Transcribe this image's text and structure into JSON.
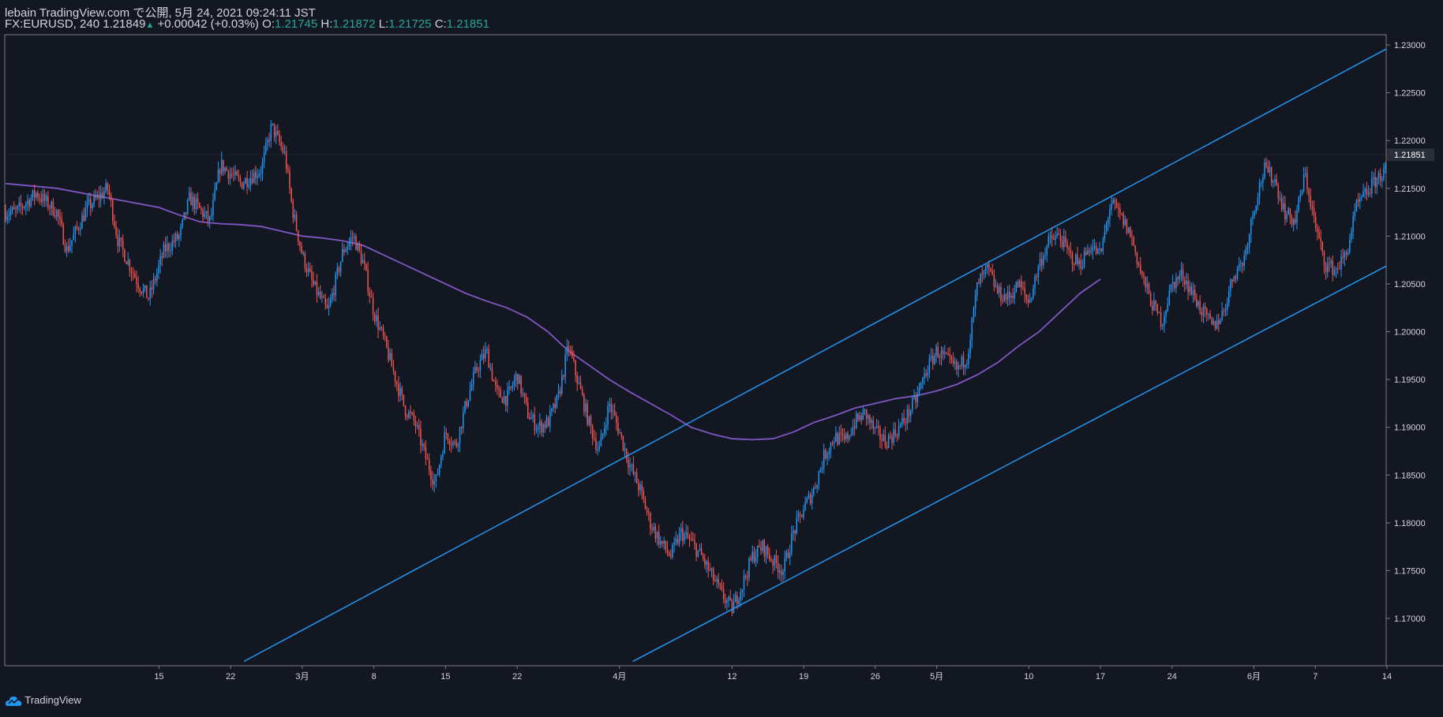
{
  "header": {
    "publish_line": "lebain TradingView.com で公開, 5月 24, 2021 09:24:11 JST",
    "symbol_line_prefix": "FX:EURUSD, 240 1.21849",
    "change_text": "+0.00042 (+0.03%)",
    "o_label": "O:",
    "o_value": "1.21745",
    "h_label": "H:",
    "h_value": "1.21872",
    "l_label": "L:",
    "l_value": "1.21725",
    "c_label": "C:",
    "c_value": "1.21851"
  },
  "footer": {
    "brand": "TradingView"
  },
  "colors": {
    "background": "#131722",
    "up_candle": "#2196f3",
    "down_candle": "#ef5350",
    "trendline": "#2196f3",
    "moving_average": "#7e57c2",
    "text": "#d1d4dc",
    "teal": "#26a69a"
  },
  "chart_data": {
    "type": "candlestick",
    "title": "FX:EURUSD, 240",
    "ylim": [
      1.165,
      1.231
    ],
    "y_ticks": [
      "1.23000",
      "1.22500",
      "1.22000",
      "1.21500",
      "1.21000",
      "1.20500",
      "1.20000",
      "1.19500",
      "1.19000",
      "1.18500",
      "1.18000",
      "1.17500",
      "1.17000"
    ],
    "last_price_label": "1.21851",
    "x_ticks": [
      {
        "label": "15",
        "day": 15
      },
      {
        "label": "22",
        "day": 22
      },
      {
        "label": "3月",
        "day": 29
      },
      {
        "label": "8",
        "day": 36
      },
      {
        "label": "15",
        "day": 43
      },
      {
        "label": "22",
        "day": 50
      },
      {
        "label": "4月",
        "day": 60
      },
      {
        "label": "12",
        "day": 71
      },
      {
        "label": "19",
        "day": 78
      },
      {
        "label": "26",
        "day": 85
      },
      {
        "label": "5月",
        "day": 91
      },
      {
        "label": "10",
        "day": 100
      },
      {
        "label": "17",
        "day": 107
      },
      {
        "label": "24",
        "day": 114
      },
      {
        "label": "6月",
        "day": 122
      },
      {
        "label": "7",
        "day": 128
      },
      {
        "label": "14",
        "day": 135
      }
    ],
    "price_path": [
      [
        1,
        1.2125
      ],
      [
        3,
        1.2145
      ],
      [
        5,
        1.2125
      ],
      [
        6,
        1.2085
      ],
      [
        8,
        1.213
      ],
      [
        10,
        1.215
      ],
      [
        11,
        1.2095
      ],
      [
        13,
        1.205
      ],
      [
        14,
        1.2035
      ],
      [
        15.5,
        1.2085
      ],
      [
        17,
        1.21
      ],
      [
        18,
        1.214
      ],
      [
        20,
        1.2115
      ],
      [
        21,
        1.2175
      ],
      [
        23,
        1.2155
      ],
      [
        25,
        1.217
      ],
      [
        26,
        1.2215
      ],
      [
        27.3,
        1.2185
      ],
      [
        28,
        1.213
      ],
      [
        29,
        1.208
      ],
      [
        30,
        1.205
      ],
      [
        31.5,
        1.202
      ],
      [
        33,
        1.2085
      ],
      [
        34,
        1.21
      ],
      [
        35,
        1.207
      ],
      [
        36,
        1.202
      ],
      [
        37,
        1.199
      ],
      [
        38,
        1.1955
      ],
      [
        39,
        1.192
      ],
      [
        40,
        1.1905
      ],
      [
        41,
        1.187
      ],
      [
        42,
        1.184
      ],
      [
        43,
        1.1895
      ],
      [
        44,
        1.188
      ],
      [
        45,
        1.1925
      ],
      [
        46,
        1.196
      ],
      [
        47,
        1.198
      ],
      [
        48,
        1.1935
      ],
      [
        49,
        1.193
      ],
      [
        50,
        1.1955
      ],
      [
        51,
        1.1915
      ],
      [
        52,
        1.19
      ],
      [
        53,
        1.1905
      ],
      [
        54,
        1.193
      ],
      [
        55,
        1.1985
      ],
      [
        56,
        1.1945
      ],
      [
        57,
        1.1905
      ],
      [
        58,
        1.1875
      ],
      [
        59,
        1.1925
      ],
      [
        60,
        1.1895
      ],
      [
        61,
        1.186
      ],
      [
        62,
        1.1835
      ],
      [
        63,
        1.18
      ],
      [
        64,
        1.178
      ],
      [
        65,
        1.1765
      ],
      [
        66,
        1.179
      ],
      [
        67,
        1.178
      ],
      [
        68,
        1.1765
      ],
      [
        69,
        1.1745
      ],
      [
        70,
        1.1725
      ],
      [
        71,
        1.171
      ],
      [
        72,
        1.1735
      ],
      [
        73,
        1.1765
      ],
      [
        74,
        1.1775
      ],
      [
        75,
        1.176
      ],
      [
        76,
        1.175
      ],
      [
        77,
        1.179
      ],
      [
        78,
        1.1815
      ],
      [
        79,
        1.1835
      ],
      [
        80,
        1.187
      ],
      [
        81,
        1.189
      ],
      [
        82,
        1.1885
      ],
      [
        83,
        1.1905
      ],
      [
        84,
        1.1915
      ],
      [
        85,
        1.1895
      ],
      [
        86,
        1.1885
      ],
      [
        87,
        1.1895
      ],
      [
        88,
        1.191
      ],
      [
        89,
        1.193
      ],
      [
        90,
        1.196
      ],
      [
        91,
        1.198
      ],
      [
        92,
        1.197
      ],
      [
        93,
        1.196
      ],
      [
        94,
        1.1975
      ],
      [
        95,
        1.205
      ],
      [
        96,
        1.2065
      ],
      [
        97,
        1.204
      ],
      [
        98,
        1.2035
      ],
      [
        99,
        1.205
      ],
      [
        100,
        1.203
      ],
      [
        101,
        1.207
      ],
      [
        102,
        1.2095
      ],
      [
        103,
        1.21
      ],
      [
        104,
        1.208
      ],
      [
        105,
        1.207
      ],
      [
        106,
        1.209
      ],
      [
        107,
        1.208
      ],
      [
        108,
        1.2135
      ],
      [
        109,
        1.212
      ],
      [
        110,
        1.21
      ],
      [
        111,
        1.206
      ],
      [
        112,
        1.203
      ],
      [
        113,
        1.201
      ],
      [
        114,
        1.205
      ],
      [
        115,
        1.206
      ],
      [
        116,
        1.204
      ],
      [
        117,
        1.202
      ],
      [
        118,
        1.2005
      ],
      [
        119,
        1.202
      ],
      [
        120,
        1.206
      ],
      [
        121,
        1.2075
      ],
      [
        122,
        1.213
      ],
      [
        123,
        1.217
      ],
      [
        124,
        1.216
      ],
      [
        125,
        1.2125
      ],
      [
        126,
        1.2115
      ],
      [
        127,
        1.2165
      ],
      [
        128,
        1.211
      ],
      [
        129,
        1.207
      ],
      [
        130,
        1.2065
      ],
      [
        131,
        1.208
      ],
      [
        132,
        1.213
      ],
      [
        133,
        1.2145
      ],
      [
        134,
        1.216
      ],
      [
        135,
        1.217
      ],
      [
        136,
        1.222
      ],
      [
        137,
        1.223
      ],
      [
        138,
        1.2215
      ],
      [
        139,
        1.218
      ],
      [
        140,
        1.22
      ],
      [
        141,
        1.223
      ],
      [
        141.8,
        1.221
      ],
      [
        142.3,
        1.2175
      ],
      [
        143,
        1.2185
      ]
    ],
    "series": [
      {
        "name": "",
        "type": "moving-average",
        "points": [
          [
            0,
            1.2155
          ],
          [
            5,
            1.215
          ],
          [
            10,
            1.214
          ],
          [
            15,
            1.213
          ],
          [
            17,
            1.2122
          ],
          [
            19,
            1.2115
          ],
          [
            21,
            1.2113
          ],
          [
            23,
            1.2112
          ],
          [
            25,
            1.211
          ],
          [
            27,
            1.2105
          ],
          [
            29,
            1.21
          ],
          [
            31,
            1.2098
          ],
          [
            33,
            1.2095
          ],
          [
            35,
            1.209
          ],
          [
            37,
            1.208
          ],
          [
            39,
            1.207
          ],
          [
            41,
            1.206
          ],
          [
            43,
            1.205
          ],
          [
            45,
            1.204
          ],
          [
            47,
            1.2032
          ],
          [
            49,
            1.2025
          ],
          [
            51,
            1.2015
          ],
          [
            53,
            1.2
          ],
          [
            55,
            1.198
          ],
          [
            57,
            1.1965
          ],
          [
            59,
            1.195
          ],
          [
            61,
            1.1937
          ],
          [
            63,
            1.1925
          ],
          [
            65,
            1.1913
          ],
          [
            67,
            1.19
          ],
          [
            69,
            1.1893
          ],
          [
            71,
            1.1888
          ],
          [
            73,
            1.1887
          ],
          [
            75,
            1.1888
          ],
          [
            77,
            1.1895
          ],
          [
            79,
            1.1905
          ],
          [
            81,
            1.1912
          ],
          [
            83,
            1.192
          ],
          [
            85,
            1.1925
          ],
          [
            87,
            1.193
          ],
          [
            89,
            1.1933
          ],
          [
            91,
            1.1938
          ],
          [
            93,
            1.1945
          ],
          [
            95,
            1.1955
          ],
          [
            97,
            1.1968
          ],
          [
            99,
            1.1985
          ],
          [
            101,
            1.2
          ],
          [
            103,
            1.202
          ],
          [
            105,
            1.204
          ],
          [
            107,
            1.2055
          ]
        ]
      }
    ],
    "trendlines": [
      {
        "name": "upper-channel",
        "from": [
          23.3,
          1.1655
        ],
        "to": [
          137.4,
          1.231
        ]
      },
      {
        "name": "lower-channel",
        "from": [
          61.3,
          1.1655
        ],
        "to": [
          175.4,
          1.2296
        ]
      }
    ]
  }
}
